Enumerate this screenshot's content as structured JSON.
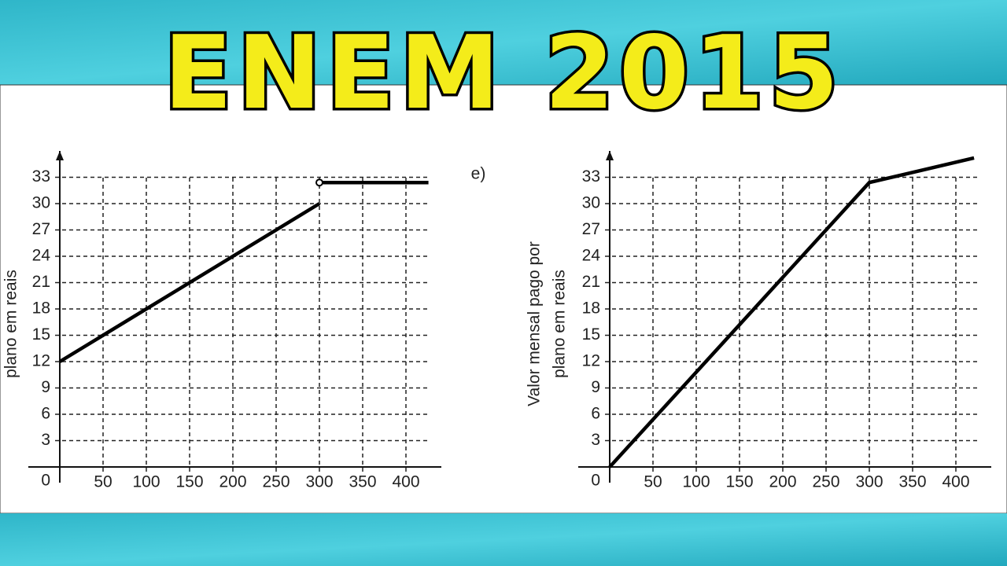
{
  "title": "ENEM 2015",
  "chart_data": [
    {
      "type": "line",
      "ylabel": [
        "plano em reais"
      ],
      "x": [
        0,
        300,
        300,
        300,
        426
      ],
      "values": [
        12,
        30,
        null,
        32.4,
        32.4
      ],
      "open_piece_start": true,
      "color": "#000000",
      "xlim": [
        0,
        430
      ],
      "ylim": [
        0,
        36
      ],
      "xticks": [
        50,
        100,
        150,
        200,
        250,
        300,
        350,
        400
      ],
      "yticks": [
        0,
        3,
        6,
        9,
        12,
        15,
        18,
        21,
        24,
        27,
        30,
        33
      ],
      "grid": true
    },
    {
      "type": "line",
      "label": "e)",
      "ylabel": [
        "Valor mensal pago por",
        "plano em reais"
      ],
      "x": [
        0,
        300,
        421
      ],
      "values": [
        0,
        32.4,
        35.2
      ],
      "open_piece_start": false,
      "color": "#000000",
      "xlim": [
        0,
        430
      ],
      "ylim": [
        0,
        36
      ],
      "xticks": [
        50,
        100,
        150,
        200,
        250,
        300,
        350,
        400
      ],
      "yticks": [
        0,
        3,
        6,
        9,
        12,
        15,
        18,
        21,
        24,
        27,
        30,
        33
      ],
      "grid": true
    }
  ]
}
